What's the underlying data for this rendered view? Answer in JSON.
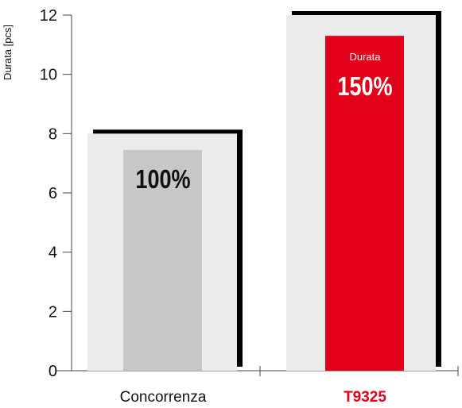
{
  "chart_data": {
    "type": "bar",
    "ylabel": "Durata [pcs]",
    "xlabel": "",
    "ylim": [
      0,
      12
    ],
    "yticks": [
      0,
      2,
      4,
      6,
      8,
      10,
      12
    ],
    "yticks_labels": [
      "0",
      "2",
      "4",
      "6",
      "8",
      "10",
      "12"
    ],
    "categories": [
      "Concorrenza",
      "T9325"
    ],
    "values": [
      7.45,
      11.3
    ],
    "background_values": [
      8.0,
      12.0
    ],
    "data_labels": [
      "100%",
      "150%"
    ],
    "inner_caption": [
      "",
      "Durata"
    ],
    "colors": {
      "bar": [
        "#c6c7c8",
        "#e2001a"
      ],
      "background_bar": "#ebebeb",
      "shadow": "#000000",
      "category_label": [
        "#111111",
        "#e2001a"
      ],
      "data_label": [
        "#111111",
        "#ffffff"
      ]
    }
  }
}
